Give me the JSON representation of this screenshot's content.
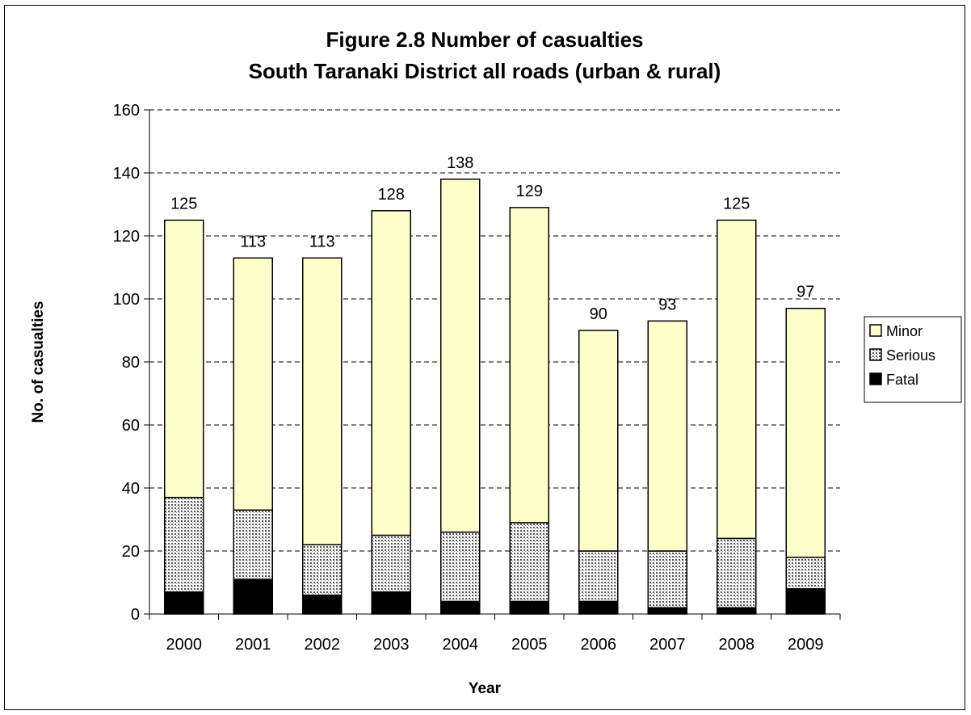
{
  "chart_data": {
    "type": "bar",
    "stacked": true,
    "title": "Figure 2.8 Number of casualties",
    "subtitle": "South Taranaki District all roads (urban & rural)",
    "xlabel": "Year",
    "ylabel": "No. of casualties",
    "ylim": [
      0,
      160
    ],
    "yticks": [
      0,
      20,
      40,
      60,
      80,
      100,
      120,
      140,
      160
    ],
    "grid": true,
    "legend_position": "right",
    "categories": [
      "2000",
      "2001",
      "2002",
      "2003",
      "2004",
      "2005",
      "2006",
      "2007",
      "2008",
      "2009"
    ],
    "series": [
      {
        "name": "Fatal",
        "values": [
          7,
          11,
          6,
          7,
          4,
          4,
          4,
          2,
          2,
          8
        ],
        "color": "#000000",
        "pattern": "solid"
      },
      {
        "name": "Serious",
        "values": [
          30,
          22,
          16,
          18,
          22,
          25,
          16,
          18,
          22,
          10
        ],
        "color": "#c8c8c8",
        "pattern": "dotted"
      },
      {
        "name": "Minor",
        "values": [
          88,
          80,
          91,
          103,
          112,
          100,
          70,
          73,
          101,
          79
        ],
        "color": "#ffffcc",
        "pattern": "solid"
      }
    ],
    "totals": [
      "125",
      "113",
      "113",
      "128",
      "138",
      "129",
      "90",
      "93",
      "125",
      "97"
    ],
    "legend_order": [
      "Minor",
      "Serious",
      "Fatal"
    ]
  }
}
